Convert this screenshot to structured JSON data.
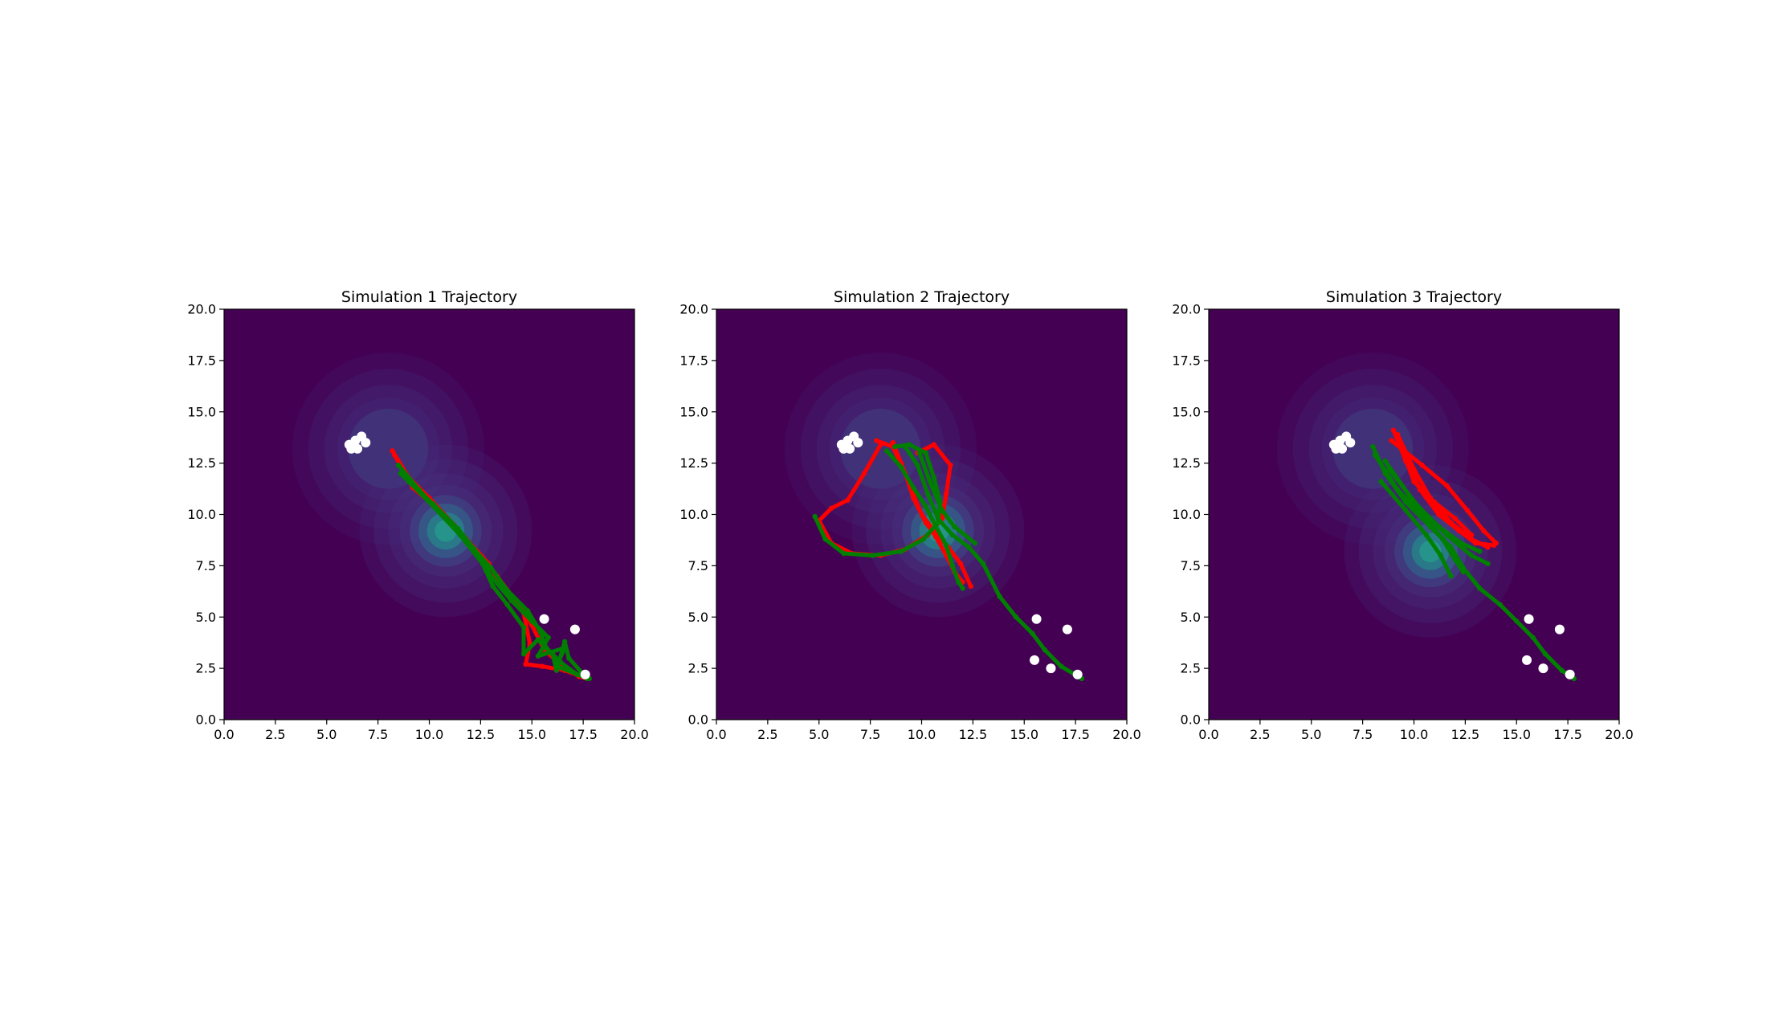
{
  "colors": {
    "background": "#440154",
    "field_low": "#46337e",
    "field_high": "#21918c",
    "trajectory_red": "#ff0000",
    "trajectory_green": "#008000",
    "obstacle": "#ffffff"
  },
  "chart_data": [
    {
      "type": "scatter",
      "title": "Simulation 1 Trajectory",
      "xlabel": "",
      "ylabel": "",
      "xlim": [
        0,
        20
      ],
      "ylim": [
        0,
        20
      ],
      "xticks": [
        "0.0",
        "2.5",
        "5.0",
        "7.5",
        "10.0",
        "12.5",
        "15.0",
        "17.5",
        "20.0"
      ],
      "yticks": [
        "0.0",
        "2.5",
        "5.0",
        "7.5",
        "10.0",
        "12.5",
        "15.0",
        "17.5",
        "20.0"
      ],
      "grid": false,
      "sources": [
        {
          "x": 8.0,
          "y": 13.2,
          "sigma": 1.7,
          "weight": 0.45
        },
        {
          "x": 10.8,
          "y": 9.2,
          "sigma": 1.4,
          "weight": 1.0
        }
      ],
      "obstacles": [
        [
          6.1,
          13.4
        ],
        [
          6.4,
          13.6
        ],
        [
          6.7,
          13.8
        ],
        [
          6.9,
          13.5
        ],
        [
          6.5,
          13.2
        ],
        [
          6.2,
          13.2
        ],
        [
          15.6,
          4.9
        ],
        [
          17.1,
          4.4
        ],
        [
          17.6,
          2.2
        ]
      ],
      "series": [
        {
          "color": "red",
          "points": [
            [
              8.2,
              13.1
            ],
            [
              9.0,
              11.8
            ],
            [
              10.0,
              10.8
            ],
            [
              11.2,
              9.5
            ],
            [
              12.5,
              8.0
            ],
            [
              13.3,
              7.0
            ],
            [
              14.2,
              5.8
            ],
            [
              15.0,
              4.6
            ],
            [
              15.6,
              3.4
            ],
            [
              16.5,
              2.6
            ],
            [
              17.3,
              2.1
            ],
            [
              17.7,
              2.0
            ]
          ]
        },
        {
          "color": "red",
          "points": [
            [
              8.3,
              12.9
            ],
            [
              9.2,
              11.3
            ],
            [
              10.5,
              10.2
            ],
            [
              11.8,
              8.8
            ],
            [
              12.9,
              7.6
            ],
            [
              13.6,
              6.4
            ],
            [
              14.6,
              5.2
            ],
            [
              14.9,
              3.7
            ],
            [
              14.7,
              2.7
            ],
            [
              15.5,
              2.6
            ],
            [
              16.6,
              2.4
            ],
            [
              17.7,
              2.0
            ]
          ]
        },
        {
          "color": "green",
          "points": [
            [
              8.5,
              12.4
            ],
            [
              9.5,
              11.2
            ],
            [
              10.8,
              9.8
            ],
            [
              12.0,
              8.5
            ],
            [
              13.0,
              7.4
            ],
            [
              13.8,
              6.3
            ],
            [
              14.8,
              5.3
            ],
            [
              15.4,
              4.3
            ],
            [
              15.7,
              3.5
            ],
            [
              16.4,
              2.8
            ],
            [
              17.2,
              2.2
            ],
            [
              17.8,
              2.0
            ]
          ]
        },
        {
          "color": "green",
          "points": [
            [
              8.6,
              12.0
            ],
            [
              10.0,
              10.6
            ],
            [
              11.5,
              9.0
            ],
            [
              12.6,
              7.6
            ],
            [
              13.1,
              6.5
            ],
            [
              13.8,
              5.6
            ],
            [
              14.6,
              4.5
            ],
            [
              14.6,
              3.2
            ],
            [
              15.3,
              3.9
            ],
            [
              16.0,
              3.2
            ],
            [
              16.2,
              2.4
            ],
            [
              16.6,
              3.8
            ],
            [
              16.8,
              3.0
            ],
            [
              17.7,
              2.0
            ]
          ]
        },
        {
          "color": "green",
          "points": [
            [
              9.0,
              11.6
            ],
            [
              10.2,
              10.5
            ],
            [
              11.4,
              9.3
            ],
            [
              12.2,
              8.3
            ],
            [
              13.0,
              7.0
            ],
            [
              14.0,
              5.8
            ],
            [
              15.0,
              4.8
            ],
            [
              15.8,
              4.0
            ],
            [
              15.3,
              3.1
            ],
            [
              16.6,
              3.5
            ],
            [
              16.2,
              2.6
            ],
            [
              17.5,
              2.1
            ]
          ]
        }
      ]
    },
    {
      "type": "scatter",
      "title": "Simulation 2 Trajectory",
      "xlabel": "",
      "ylabel": "",
      "xlim": [
        0,
        20
      ],
      "ylim": [
        0,
        20
      ],
      "xticks": [
        "0.0",
        "2.5",
        "5.0",
        "7.5",
        "10.0",
        "12.5",
        "15.0",
        "17.5",
        "20.0"
      ],
      "yticks": [
        "0.0",
        "2.5",
        "5.0",
        "7.5",
        "10.0",
        "12.5",
        "15.0",
        "17.5",
        "20.0"
      ],
      "grid": false,
      "sources": [
        {
          "x": 8.0,
          "y": 13.2,
          "sigma": 1.7,
          "weight": 0.45
        },
        {
          "x": 10.8,
          "y": 9.2,
          "sigma": 1.4,
          "weight": 1.0
        }
      ],
      "obstacles": [
        [
          6.1,
          13.4
        ],
        [
          6.4,
          13.6
        ],
        [
          6.7,
          13.8
        ],
        [
          6.9,
          13.5
        ],
        [
          6.5,
          13.2
        ],
        [
          6.2,
          13.2
        ],
        [
          15.6,
          4.9
        ],
        [
          17.1,
          4.4
        ],
        [
          15.5,
          2.9
        ],
        [
          16.3,
          2.5
        ],
        [
          17.6,
          2.2
        ]
      ],
      "series": [
        {
          "color": "red",
          "points": [
            [
              7.8,
              13.6
            ],
            [
              8.6,
              13.3
            ],
            [
              9.2,
              12.0
            ],
            [
              9.6,
              10.8
            ],
            [
              10.2,
              9.6
            ],
            [
              10.7,
              8.9
            ],
            [
              11.2,
              8.0
            ],
            [
              11.6,
              7.2
            ],
            [
              12.0,
              6.7
            ]
          ]
        },
        {
          "color": "red",
          "points": [
            [
              8.0,
              13.4
            ],
            [
              7.2,
              12.0
            ],
            [
              6.4,
              10.7
            ],
            [
              5.6,
              10.3
            ],
            [
              5.0,
              9.7
            ],
            [
              5.6,
              8.6
            ],
            [
              6.6,
              8.1
            ],
            [
              8.0,
              8.0
            ],
            [
              9.2,
              8.3
            ],
            [
              10.3,
              9.0
            ],
            [
              11.0,
              9.8
            ],
            [
              11.2,
              11.0
            ],
            [
              11.4,
              12.4
            ],
            [
              10.6,
              13.4
            ],
            [
              9.8,
              13.0
            ]
          ]
        },
        {
          "color": "red",
          "points": [
            [
              8.6,
              13.5
            ],
            [
              9.0,
              12.5
            ],
            [
              9.5,
              11.2
            ],
            [
              10.0,
              10.0
            ],
            [
              10.6,
              9.2
            ],
            [
              11.3,
              8.4
            ],
            [
              11.9,
              7.6
            ],
            [
              12.4,
              6.5
            ]
          ]
        },
        {
          "color": "green",
          "points": [
            [
              8.3,
              13.1
            ],
            [
              9.0,
              12.3
            ],
            [
              9.6,
              11.3
            ],
            [
              10.2,
              10.4
            ],
            [
              10.7,
              9.4
            ],
            [
              11.2,
              8.5
            ],
            [
              11.5,
              7.5
            ],
            [
              11.8,
              6.7
            ],
            [
              12.0,
              6.4
            ]
          ]
        },
        {
          "color": "green",
          "points": [
            [
              4.8,
              9.9
            ],
            [
              5.3,
              8.8
            ],
            [
              6.2,
              8.1
            ],
            [
              7.6,
              8.0
            ],
            [
              9.0,
              8.2
            ],
            [
              10.1,
              8.8
            ],
            [
              10.8,
              9.6
            ],
            [
              10.9,
              10.6
            ],
            [
              10.6,
              11.8
            ],
            [
              10.2,
              13.0
            ],
            [
              9.4,
              13.4
            ],
            [
              8.7,
              13.3
            ]
          ]
        },
        {
          "color": "green",
          "points": [
            [
              9.2,
              13.3
            ],
            [
              9.8,
              12.4
            ],
            [
              10.3,
              11.0
            ],
            [
              10.8,
              9.8
            ],
            [
              11.5,
              9.0
            ],
            [
              12.3,
              8.4
            ],
            [
              13.0,
              7.6
            ],
            [
              13.8,
              6.0
            ],
            [
              14.6,
              5.0
            ],
            [
              15.4,
              4.2
            ],
            [
              16.0,
              3.4
            ],
            [
              16.8,
              2.6
            ],
            [
              17.8,
              2.0
            ]
          ]
        },
        {
          "color": "green",
          "points": [
            [
              9.9,
              13.0
            ],
            [
              10.4,
              11.6
            ],
            [
              11.0,
              10.2
            ],
            [
              11.6,
              9.4
            ],
            [
              12.6,
              8.6
            ]
          ]
        }
      ]
    },
    {
      "type": "scatter",
      "title": "Simulation 3 Trajectory",
      "xlabel": "",
      "ylabel": "",
      "xlim": [
        0,
        20
      ],
      "ylim": [
        0,
        20
      ],
      "xticks": [
        "0.0",
        "2.5",
        "5.0",
        "7.5",
        "10.0",
        "12.5",
        "15.0",
        "17.5",
        "20.0"
      ],
      "yticks": [
        "0.0",
        "2.5",
        "5.0",
        "7.5",
        "10.0",
        "12.5",
        "15.0",
        "17.5",
        "20.0"
      ],
      "grid": false,
      "sources": [
        {
          "x": 8.0,
          "y": 13.2,
          "sigma": 1.7,
          "weight": 0.45
        },
        {
          "x": 10.8,
          "y": 8.2,
          "sigma": 1.4,
          "weight": 1.0
        }
      ],
      "obstacles": [
        [
          6.1,
          13.4
        ],
        [
          6.4,
          13.6
        ],
        [
          6.7,
          13.8
        ],
        [
          6.9,
          13.5
        ],
        [
          6.5,
          13.2
        ],
        [
          6.2,
          13.2
        ],
        [
          15.6,
          4.9
        ],
        [
          17.1,
          4.4
        ],
        [
          15.5,
          2.9
        ],
        [
          16.3,
          2.5
        ],
        [
          17.6,
          2.2
        ]
      ],
      "series": [
        {
          "color": "red",
          "points": [
            [
              9.0,
              14.1
            ],
            [
              9.6,
              12.6
            ],
            [
              10.3,
              11.2
            ],
            [
              11.2,
              10.0
            ],
            [
              12.2,
              9.2
            ],
            [
              13.0,
              8.6
            ],
            [
              13.9,
              8.5
            ]
          ]
        },
        {
          "color": "red",
          "points": [
            [
              9.2,
              13.9
            ],
            [
              10.0,
              12.2
            ],
            [
              10.8,
              10.8
            ],
            [
              11.8,
              9.6
            ],
            [
              12.8,
              8.8
            ],
            [
              13.6,
              8.4
            ]
          ]
        },
        {
          "color": "red",
          "points": [
            [
              8.9,
              13.6
            ],
            [
              10.4,
              12.4
            ],
            [
              11.6,
              11.4
            ],
            [
              12.6,
              10.2
            ],
            [
              13.4,
              9.2
            ],
            [
              14.0,
              8.6
            ]
          ]
        },
        {
          "color": "red",
          "points": [
            [
              9.4,
              13.2
            ],
            [
              10.0,
              11.6
            ],
            [
              11.0,
              10.6
            ],
            [
              12.0,
              9.8
            ],
            [
              12.8,
              9.0
            ]
          ]
        },
        {
          "color": "green",
          "points": [
            [
              8.0,
              13.3
            ],
            [
              8.6,
              12.0
            ],
            [
              9.6,
              10.6
            ],
            [
              10.8,
              9.4
            ],
            [
              11.8,
              8.4
            ],
            [
              12.4,
              7.4
            ],
            [
              13.2,
              6.4
            ],
            [
              14.2,
              5.6
            ],
            [
              15.0,
              4.8
            ],
            [
              15.8,
              4.0
            ],
            [
              16.4,
              3.2
            ],
            [
              17.2,
              2.4
            ],
            [
              17.8,
              2.0
            ]
          ]
        },
        {
          "color": "green",
          "points": [
            [
              8.1,
              12.9
            ],
            [
              9.2,
              11.2
            ],
            [
              10.4,
              10.0
            ],
            [
              11.4,
              8.8
            ],
            [
              12.0,
              7.8
            ],
            [
              12.4,
              7.2
            ]
          ]
        },
        {
          "color": "green",
          "points": [
            [
              8.6,
              12.6
            ],
            [
              10.0,
              10.6
            ],
            [
              11.2,
              9.4
            ],
            [
              12.3,
              8.6
            ],
            [
              13.2,
              8.2
            ]
          ]
        },
        {
          "color": "green",
          "points": [
            [
              8.4,
              11.6
            ],
            [
              9.6,
              10.2
            ],
            [
              10.6,
              9.0
            ],
            [
              11.3,
              8.0
            ],
            [
              11.8,
              7.0
            ]
          ]
        },
        {
          "color": "green",
          "points": [
            [
              8.8,
              12.2
            ],
            [
              10.2,
              10.4
            ],
            [
              11.6,
              9.0
            ],
            [
              12.8,
              8.0
            ],
            [
              13.6,
              7.6
            ]
          ]
        }
      ]
    }
  ]
}
